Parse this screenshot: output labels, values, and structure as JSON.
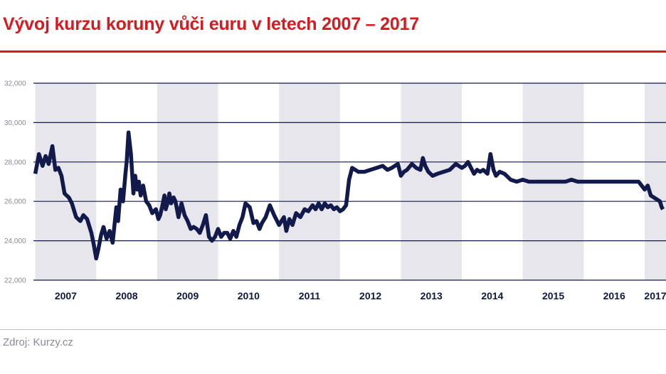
{
  "chart_data": {
    "type": "line",
    "title": "Vývoj kurzu koruny vůči euru v letech 2007 – 2017",
    "source": "Zdroj: Kurzy.cz",
    "xlabel": "",
    "ylabel": "",
    "ylim": [
      22,
      32
    ],
    "yticks": [
      22,
      24,
      26,
      28,
      30,
      32
    ],
    "ytick_labels": [
      "22,000",
      "24,000",
      "26,000",
      "28,000",
      "30,000",
      "32,000"
    ],
    "xlim": [
      2006.97,
      2017.35
    ],
    "year_labels": [
      "2007",
      "2008",
      "2009",
      "2010",
      "2011",
      "2012",
      "2013",
      "2014",
      "2015",
      "2016",
      "2017"
    ],
    "grid": true,
    "legend": "none",
    "colors": {
      "line": "#121a4c",
      "band": "#e6e6ec",
      "grid": "#121a4c",
      "title": "#d71920"
    },
    "series": [
      {
        "x": [
          2007.0,
          2007.06,
          2007.12,
          2007.17,
          2007.22,
          2007.28,
          2007.33,
          2007.38,
          2007.43,
          2007.48,
          2007.55,
          2007.6,
          2007.67,
          2007.74,
          2007.79,
          2007.85,
          2007.9,
          2007.92,
          2007.96,
          2008.0,
          2008.03,
          2008.08,
          2008.12,
          2008.17,
          2008.22,
          2008.27,
          2008.33,
          2008.36,
          2008.4,
          2008.44,
          2008.48,
          2008.5,
          2008.53,
          2008.57,
          2008.61,
          2008.64,
          2008.67,
          2008.7,
          2008.73,
          2008.77,
          2008.82,
          2008.87,
          2008.92,
          2008.98,
          2009.02,
          2009.05,
          2009.08,
          2009.12,
          2009.14,
          2009.17,
          2009.2,
          2009.23,
          2009.27,
          2009.3,
          2009.35,
          2009.4,
          2009.45,
          2009.5,
          2009.55,
          2009.6,
          2009.65,
          2009.7,
          2009.75,
          2009.8,
          2009.85,
          2009.9,
          2009.95,
          2010.0,
          2010.05,
          2010.1,
          2010.15,
          2010.2,
          2010.25,
          2010.3,
          2010.35,
          2010.4,
          2010.45,
          2010.52,
          2010.58,
          2010.63,
          2010.68,
          2010.72,
          2010.78,
          2010.85,
          2010.92,
          2011.0,
          2011.08,
          2011.12,
          2011.17,
          2011.22,
          2011.28,
          2011.35,
          2011.42,
          2011.48,
          2011.55,
          2011.6,
          2011.65,
          2011.7,
          2011.75,
          2011.8,
          2011.85,
          2011.9,
          2011.95,
          2012.0,
          2012.05,
          2012.1,
          2012.15,
          2012.2,
          2012.3,
          2012.4,
          2012.5,
          2012.6,
          2012.7,
          2012.78,
          2012.85,
          2012.9,
          2012.95,
          2013.0,
          2013.05,
          2013.1,
          2013.18,
          2013.25,
          2013.32,
          2013.36,
          2013.4,
          2013.45,
          2013.52,
          2013.6,
          2013.7,
          2013.8,
          2013.9,
          2014.0,
          2014.05,
          2014.1,
          2014.2,
          2014.25,
          2014.3,
          2014.35,
          2014.42,
          2014.47,
          2014.52,
          2014.56,
          2014.62,
          2014.7,
          2014.8,
          2014.9,
          2015.0,
          2015.1,
          2015.2,
          2015.3,
          2015.4,
          2015.5,
          2015.6,
          2015.7,
          2015.8,
          2015.9,
          2016.0,
          2016.1,
          2016.2,
          2016.3,
          2016.4,
          2016.5,
          2016.6,
          2016.7,
          2016.8,
          2016.9,
          2017.0,
          2017.05,
          2017.1,
          2017.15,
          2017.2,
          2017.25,
          2017.28,
          2017.3
        ],
        "y": [
          27.4,
          28.4,
          27.8,
          28.3,
          27.9,
          28.8,
          27.6,
          27.7,
          27.3,
          26.4,
          26.2,
          25.9,
          25.2,
          25.0,
          25.3,
          25.1,
          24.6,
          24.4,
          23.8,
          23.1,
          23.5,
          24.3,
          24.7,
          24.1,
          24.5,
          23.9,
          25.7,
          25.0,
          26.6,
          26.0,
          27.4,
          28.0,
          29.5,
          28.4,
          26.4,
          27.3,
          26.6,
          27.0,
          26.3,
          26.8,
          26.0,
          25.8,
          25.4,
          25.6,
          25.1,
          25.3,
          25.7,
          26.3,
          25.6,
          25.9,
          26.4,
          25.9,
          26.2,
          26.0,
          25.2,
          25.9,
          25.3,
          25.0,
          24.6,
          24.7,
          24.6,
          24.4,
          24.8,
          25.3,
          24.2,
          24.0,
          24.2,
          24.6,
          24.2,
          24.4,
          24.4,
          24.1,
          24.5,
          24.2,
          24.8,
          25.2,
          25.9,
          25.7,
          24.9,
          25.0,
          24.6,
          24.9,
          25.2,
          25.8,
          25.3,
          24.8,
          25.2,
          24.5,
          25.1,
          24.8,
          25.4,
          25.2,
          25.6,
          25.5,
          25.8,
          25.6,
          25.9,
          25.6,
          25.9,
          25.7,
          25.8,
          25.6,
          25.7,
          25.5,
          25.6,
          25.8,
          27.1,
          27.7,
          27.5,
          27.5,
          27.6,
          27.7,
          27.8,
          27.6,
          27.7,
          27.8,
          27.9,
          27.3,
          27.5,
          27.6,
          27.9,
          27.7,
          27.6,
          28.2,
          27.8,
          27.5,
          27.3,
          27.4,
          27.5,
          27.6,
          27.9,
          27.7,
          27.8,
          28.0,
          27.4,
          27.6,
          27.5,
          27.6,
          27.4,
          28.4,
          27.6,
          27.3,
          27.5,
          27.4,
          27.1,
          27.0,
          27.1,
          27.0,
          27.0,
          27.0,
          27.0,
          27.0,
          27.0,
          27.0,
          27.1,
          27.0,
          27.0,
          27.0,
          27.0,
          27.0,
          27.0,
          27.0,
          27.0,
          27.0,
          27.0,
          27.0,
          26.6,
          26.8,
          26.3,
          26.2,
          26.1,
          26.0,
          25.7,
          25.6
        ]
      }
    ]
  }
}
